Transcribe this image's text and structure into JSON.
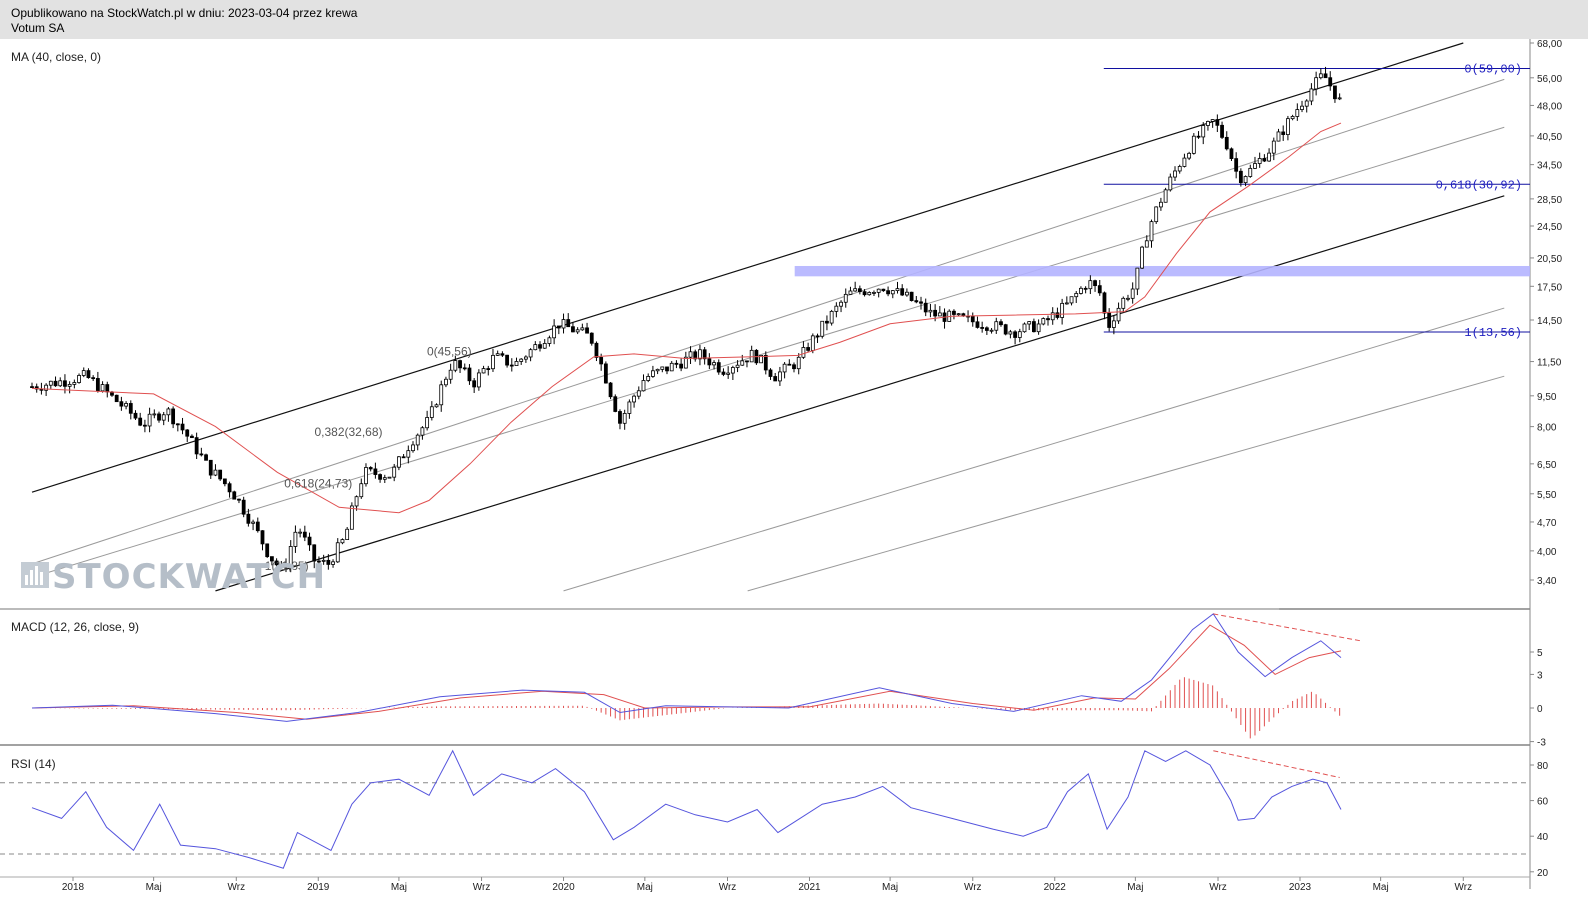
{
  "header": {
    "published": "Opublikowano na StockWatch.pl w dniu: 2023-03-04 przez krewa",
    "instrument": "Votum SA"
  },
  "watermark": "STOCKWATCH",
  "colors": {
    "candle": "#000000",
    "ma": "#e05050",
    "macd": "#5555dd",
    "signal": "#e05050",
    "histogram": "#e05050",
    "rsi": "#5555dd",
    "zone": "#b4b4ff",
    "fib": "#1010a0"
  },
  "chart_data": [
    {
      "type": "candlestick",
      "indicator_label": "MA (40, close, 0)",
      "scale": "log",
      "y_ticks": [
        "68,00",
        "56,00",
        "48,00",
        "40,50",
        "34,50",
        "28,50",
        "24,50",
        "20,50",
        "17,50",
        "14,50",
        "11,50",
        "9,50",
        "8,00",
        "6,50",
        "5,50",
        "4,70",
        "4,00",
        "3,40"
      ],
      "x_ticks": [
        "2018",
        "Maj",
        "Wrz",
        "2019",
        "Maj",
        "Wrz",
        "2020",
        "Maj",
        "Wrz",
        "2021",
        "Maj",
        "Wrz",
        "2022",
        "Maj",
        "Wrz",
        "2023",
        "Maj",
        "Wrz"
      ],
      "x_tick_dates": [
        "2018-01",
        "2018-05",
        "2018-09",
        "2019-01",
        "2019-05",
        "2019-09",
        "2020-01",
        "2020-05",
        "2020-09",
        "2021-01",
        "2021-05",
        "2021-09",
        "2022-01",
        "2022-05",
        "2022-09",
        "2023-01",
        "2023-05",
        "2023-09"
      ],
      "close_path": [
        [
          "2017-11-01",
          10.0
        ],
        [
          "2017-12-15",
          10.3
        ],
        [
          "2018-01-20",
          10.6
        ],
        [
          "2018-03-01",
          9.4
        ],
        [
          "2018-04-15",
          8.1
        ],
        [
          "2018-05-20",
          8.8
        ],
        [
          "2018-06-15",
          7.8
        ],
        [
          "2018-07-20",
          6.4
        ],
        [
          "2018-08-25",
          5.6
        ],
        [
          "2018-09-20",
          4.8
        ],
        [
          "2018-10-20",
          3.9
        ],
        [
          "2018-11-10",
          3.55
        ],
        [
          "2018-12-01",
          4.6
        ],
        [
          "2018-12-25",
          3.8
        ],
        [
          "2019-01-15",
          3.7
        ],
        [
          "2019-02-10",
          4.3
        ],
        [
          "2019-03-10",
          6.2
        ],
        [
          "2019-04-20",
          6.1
        ],
        [
          "2019-05-20",
          7.4
        ],
        [
          "2019-06-15",
          8.3
        ],
        [
          "2019-07-20",
          11.5
        ],
        [
          "2019-08-20",
          10.2
        ],
        [
          "2019-09-20",
          11.8
        ],
        [
          "2019-10-20",
          11.3
        ],
        [
          "2019-11-20",
          12.5
        ],
        [
          "2019-12-25",
          14.2
        ],
        [
          "2020-02-10",
          13.2
        ],
        [
          "2020-03-10",
          9.8
        ],
        [
          "2020-03-25",
          8.2
        ],
        [
          "2020-05-01",
          10.5
        ],
        [
          "2020-06-15",
          11.3
        ],
        [
          "2020-07-20",
          12.0
        ],
        [
          "2020-08-25",
          11.0
        ],
        [
          "2020-10-10",
          12.0
        ],
        [
          "2020-11-10",
          10.6
        ],
        [
          "2020-12-15",
          11.5
        ],
        [
          "2021-01-25",
          14.3
        ],
        [
          "2021-03-01",
          16.8
        ],
        [
          "2021-04-20",
          17.5
        ],
        [
          "2021-05-25",
          16.5
        ],
        [
          "2021-07-01",
          15.0
        ],
        [
          "2021-08-10",
          14.6
        ],
        [
          "2021-09-20",
          14.2
        ],
        [
          "2021-11-01",
          13.6
        ],
        [
          "2021-12-15",
          14.2
        ],
        [
          "2022-01-20",
          15.8
        ],
        [
          "2022-02-20",
          18.0
        ],
        [
          "2022-03-10",
          16.8
        ],
        [
          "2022-03-20",
          13.8
        ],
        [
          "2022-04-10",
          16.0
        ],
        [
          "2022-04-30",
          17.5
        ],
        [
          "2022-05-20",
          24.0
        ],
        [
          "2022-06-15",
          30.0
        ],
        [
          "2022-07-20",
          38.0
        ],
        [
          "2022-08-25",
          44.0
        ],
        [
          "2022-09-15",
          38.5
        ],
        [
          "2022-10-01",
          32.0
        ],
        [
          "2022-10-20",
          33.5
        ],
        [
          "2022-11-20",
          38.0
        ],
        [
          "2022-12-20",
          45.0
        ],
        [
          "2023-01-15",
          52.0
        ],
        [
          "2023-02-05",
          57.0
        ],
        [
          "2023-02-20",
          52.0
        ],
        [
          "2023-03-03",
          48.5
        ]
      ],
      "ma_path": [
        [
          "2017-11-01",
          9.9
        ],
        [
          "2018-05-01",
          9.6
        ],
        [
          "2018-08-01",
          8.0
        ],
        [
          "2018-11-01",
          6.2
        ],
        [
          "2019-02-01",
          5.1
        ],
        [
          "2019-05-01",
          4.95
        ],
        [
          "2019-06-15",
          5.3
        ],
        [
          "2019-08-15",
          6.5
        ],
        [
          "2019-10-15",
          8.2
        ],
        [
          "2019-12-15",
          10.0
        ],
        [
          "2020-02-15",
          11.8
        ],
        [
          "2020-04-15",
          12.0
        ],
        [
          "2020-07-01",
          11.7
        ],
        [
          "2020-10-01",
          11.8
        ],
        [
          "2020-12-15",
          11.9
        ],
        [
          "2021-02-15",
          12.8
        ],
        [
          "2021-05-01",
          14.2
        ],
        [
          "2021-08-01",
          14.8
        ],
        [
          "2021-11-01",
          14.9
        ],
        [
          "2022-02-01",
          15.0
        ],
        [
          "2022-04-15",
          15.2
        ],
        [
          "2022-05-15",
          16.5
        ],
        [
          "2022-07-01",
          21.0
        ],
        [
          "2022-08-20",
          26.5
        ],
        [
          "2022-10-15",
          30.5
        ],
        [
          "2022-12-15",
          36.0
        ],
        [
          "2023-02-01",
          41.5
        ],
        [
          "2023-03-03",
          43.5
        ]
      ],
      "channel_start": [
        "2017-11-01",
        5.55
      ],
      "channel_end": [
        "2023-09-01",
        68.0
      ],
      "lower_start": [
        "2018-08-01",
        3.2
      ],
      "lower_end": [
        "2023-11-01",
        29.0
      ],
      "gray_lines": [
        [
          [
            "2017-11-01",
            3.72
          ],
          [
            "2023-11-01",
            55.5
          ]
        ],
        [
          [
            "2017-11-01",
            3.45
          ],
          [
            "2023-11-01",
            42.5
          ]
        ],
        [
          [
            "2020-01-01",
            3.2
          ],
          [
            "2023-11-01",
            15.5
          ]
        ],
        [
          [
            "2020-10-01",
            3.2
          ],
          [
            "2023-11-01",
            10.6
          ]
        ]
      ],
      "zone": {
        "from": "2020-12-10",
        "low": 18.5,
        "high": 19.6
      },
      "fib_levels": [
        {
          "label": "0(59,00)",
          "value": 59.0
        },
        {
          "label": "0,618(30,92)",
          "value": 30.92
        },
        {
          "label": "1(13,56)",
          "value": 13.56
        }
      ],
      "fib_from": "2022-03-15",
      "fib_labels_left": [
        {
          "label": "0(45,56)",
          "date": "2019-07-15",
          "value": 11.9
        },
        {
          "label": "0,382(32,68)",
          "date": "2019-02-15",
          "value": 7.6
        },
        {
          "label": "0,618(24,73)",
          "date": "2019-01-01",
          "value": 5.7
        },
        {
          "label": "1(11,85)",
          "date": "2018-11-15",
          "value": 3.6
        }
      ]
    },
    {
      "type": "line",
      "indicator_label": "MACD (12, 26, close, 9)",
      "y_ticks": [
        "5",
        "3",
        "0",
        "-3"
      ],
      "macd_path": [
        [
          "2017-11-01",
          0.0
        ],
        [
          "2018-03-01",
          0.25
        ],
        [
          "2018-08-01",
          -0.5
        ],
        [
          "2018-11-15",
          -1.2
        ],
        [
          "2019-03-01",
          -0.4
        ],
        [
          "2019-07-01",
          1.0
        ],
        [
          "2019-11-01",
          1.6
        ],
        [
          "2020-02-01",
          1.4
        ],
        [
          "2020-03-25",
          -0.4
        ],
        [
          "2020-06-01",
          0.2
        ],
        [
          "2020-09-01",
          0.1
        ],
        [
          "2020-12-01",
          0.0
        ],
        [
          "2021-04-15",
          1.8
        ],
        [
          "2021-08-01",
          0.4
        ],
        [
          "2021-11-01",
          -0.3
        ],
        [
          "2022-02-10",
          1.1
        ],
        [
          "2022-04-10",
          0.6
        ],
        [
          "2022-05-25",
          2.5
        ],
        [
          "2022-07-25",
          7.0
        ],
        [
          "2022-08-25",
          8.4
        ],
        [
          "2022-10-01",
          5.0
        ],
        [
          "2022-11-10",
          2.8
        ],
        [
          "2022-12-20",
          4.5
        ],
        [
          "2023-02-01",
          6.0
        ],
        [
          "2023-03-03",
          4.5
        ]
      ],
      "signal_path": [
        [
          "2017-11-01",
          0.0
        ],
        [
          "2018-04-01",
          0.2
        ],
        [
          "2018-09-01",
          -0.4
        ],
        [
          "2018-12-15",
          -1.0
        ],
        [
          "2019-04-01",
          -0.3
        ],
        [
          "2019-08-01",
          0.9
        ],
        [
          "2019-12-01",
          1.5
        ],
        [
          "2020-03-01",
          1.2
        ],
        [
          "2020-05-01",
          0.0
        ],
        [
          "2020-09-01",
          0.1
        ],
        [
          "2021-01-01",
          0.1
        ],
        [
          "2021-05-01",
          1.5
        ],
        [
          "2021-09-01",
          0.4
        ],
        [
          "2021-12-01",
          -0.2
        ],
        [
          "2022-03-01",
          0.9
        ],
        [
          "2022-05-01",
          0.8
        ],
        [
          "2022-06-20",
          3.5
        ],
        [
          "2022-08-20",
          7.4
        ],
        [
          "2022-10-10",
          5.6
        ],
        [
          "2022-11-25",
          3.0
        ],
        [
          "2023-01-15",
          4.5
        ],
        [
          "2023-03-03",
          5.1
        ]
      ],
      "histogram_path": [
        [
          "2017-11-01",
          0.0
        ],
        [
          "2018-11-15",
          -0.2
        ],
        [
          "2019-07-01",
          0.15
        ],
        [
          "2020-02-01",
          0.2
        ],
        [
          "2020-03-25",
          -1.1
        ],
        [
          "2020-09-01",
          0.0
        ],
        [
          "2021-04-15",
          0.4
        ],
        [
          "2021-11-01",
          -0.2
        ],
        [
          "2022-04-10",
          -0.2
        ],
        [
          "2022-05-25",
          -0.3
        ],
        [
          "2022-07-10",
          2.8
        ],
        [
          "2022-08-25",
          2.0
        ],
        [
          "2022-10-20",
          -2.8
        ],
        [
          "2022-11-20",
          -1.0
        ],
        [
          "2022-12-20",
          0.6
        ],
        [
          "2023-01-20",
          1.5
        ],
        [
          "2023-03-03",
          -0.8
        ]
      ]
    },
    {
      "type": "line",
      "indicator_label": "RSI (14)",
      "y_ticks": [
        "80",
        "60",
        "40",
        "20"
      ],
      "levels": [
        70,
        30
      ],
      "rsi_path": [
        [
          "2017-11-01",
          56
        ],
        [
          "2017-12-15",
          50
        ],
        [
          "2018-01-20",
          65
        ],
        [
          "2018-02-20",
          45
        ],
        [
          "2018-04-01",
          32
        ],
        [
          "2018-05-10",
          58
        ],
        [
          "2018-06-10",
          35
        ],
        [
          "2018-08-01",
          33
        ],
        [
          "2018-09-20",
          28
        ],
        [
          "2018-11-10",
          22
        ],
        [
          "2018-12-01",
          42
        ],
        [
          "2019-01-20",
          32
        ],
        [
          "2019-02-20",
          58
        ],
        [
          "2019-03-20",
          70
        ],
        [
          "2019-05-01",
          72
        ],
        [
          "2019-06-15",
          63
        ],
        [
          "2019-07-20",
          88
        ],
        [
          "2019-08-20",
          63
        ],
        [
          "2019-10-01",
          75
        ],
        [
          "2019-11-15",
          70
        ],
        [
          "2019-12-20",
          78
        ],
        [
          "2020-02-01",
          65
        ],
        [
          "2020-03-15",
          38
        ],
        [
          "2020-04-15",
          45
        ],
        [
          "2020-06-01",
          58
        ],
        [
          "2020-07-15",
          52
        ],
        [
          "2020-09-01",
          48
        ],
        [
          "2020-10-15",
          55
        ],
        [
          "2020-11-15",
          42
        ],
        [
          "2021-01-20",
          58
        ],
        [
          "2021-03-10",
          62
        ],
        [
          "2021-04-20",
          68
        ],
        [
          "2021-06-01",
          56
        ],
        [
          "2021-08-01",
          50
        ],
        [
          "2021-10-01",
          44
        ],
        [
          "2021-11-15",
          40
        ],
        [
          "2021-12-20",
          45
        ],
        [
          "2022-01-20",
          65
        ],
        [
          "2022-02-20",
          75
        ],
        [
          "2022-03-20",
          44
        ],
        [
          "2022-04-20",
          62
        ],
        [
          "2022-05-15",
          88
        ],
        [
          "2022-06-15",
          82
        ],
        [
          "2022-07-15",
          88
        ],
        [
          "2022-08-20",
          80
        ],
        [
          "2022-09-20",
          60
        ],
        [
          "2022-10-01",
          49
        ],
        [
          "2022-10-25",
          50
        ],
        [
          "2022-11-20",
          62
        ],
        [
          "2022-12-20",
          68
        ],
        [
          "2023-01-20",
          72
        ],
        [
          "2023-02-10",
          70
        ],
        [
          "2023-03-03",
          55
        ]
      ]
    }
  ]
}
